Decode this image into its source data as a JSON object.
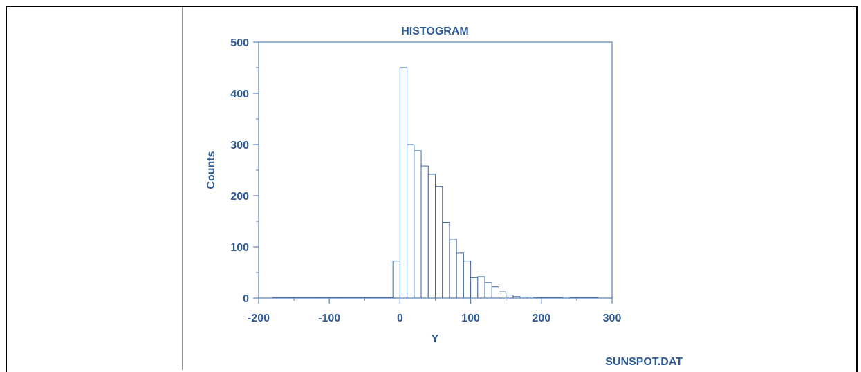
{
  "chart_data": {
    "type": "bar",
    "title": "HISTOGRAM",
    "xlabel": "Y",
    "ylabel": "Counts",
    "footer": "SUNSPOT.DAT",
    "xlim": [
      -200,
      300
    ],
    "ylim": [
      0,
      500
    ],
    "xticks": [
      -200,
      -100,
      0,
      100,
      200,
      300
    ],
    "yticks": [
      0,
      100,
      200,
      300,
      400,
      500
    ],
    "bin_width": 10,
    "bins": [
      {
        "x0": -180,
        "x1": -170,
        "count": 1
      },
      {
        "x0": -170,
        "x1": -160,
        "count": 1
      },
      {
        "x0": -160,
        "x1": -150,
        "count": 1
      },
      {
        "x0": -150,
        "x1": -140,
        "count": 1
      },
      {
        "x0": -140,
        "x1": -130,
        "count": 1
      },
      {
        "x0": -130,
        "x1": -120,
        "count": 1
      },
      {
        "x0": -120,
        "x1": -110,
        "count": 1
      },
      {
        "x0": -110,
        "x1": -100,
        "count": 1
      },
      {
        "x0": -100,
        "x1": -90,
        "count": 1
      },
      {
        "x0": -90,
        "x1": -80,
        "count": 1
      },
      {
        "x0": -80,
        "x1": -70,
        "count": 1
      },
      {
        "x0": -70,
        "x1": -60,
        "count": 1
      },
      {
        "x0": -60,
        "x1": -50,
        "count": 1
      },
      {
        "x0": -50,
        "x1": -40,
        "count": 1
      },
      {
        "x0": -40,
        "x1": -30,
        "count": 1
      },
      {
        "x0": -30,
        "x1": -20,
        "count": 1
      },
      {
        "x0": -20,
        "x1": -10,
        "count": 1
      },
      {
        "x0": -10,
        "x1": 0,
        "count": 72
      },
      {
        "x0": 0,
        "x1": 10,
        "count": 450
      },
      {
        "x0": 10,
        "x1": 20,
        "count": 300
      },
      {
        "x0": 20,
        "x1": 30,
        "count": 288
      },
      {
        "x0": 30,
        "x1": 40,
        "count": 258
      },
      {
        "x0": 40,
        "x1": 50,
        "count": 242
      },
      {
        "x0": 50,
        "x1": 60,
        "count": 218
      },
      {
        "x0": 60,
        "x1": 70,
        "count": 148
      },
      {
        "x0": 70,
        "x1": 80,
        "count": 115
      },
      {
        "x0": 80,
        "x1": 90,
        "count": 88
      },
      {
        "x0": 90,
        "x1": 100,
        "count": 72
      },
      {
        "x0": 100,
        "x1": 110,
        "count": 40
      },
      {
        "x0": 110,
        "x1": 120,
        "count": 42
      },
      {
        "x0": 120,
        "x1": 130,
        "count": 30
      },
      {
        "x0": 130,
        "x1": 140,
        "count": 22
      },
      {
        "x0": 140,
        "x1": 150,
        "count": 12
      },
      {
        "x0": 150,
        "x1": 160,
        "count": 6
      },
      {
        "x0": 160,
        "x1": 170,
        "count": 3
      },
      {
        "x0": 170,
        "x1": 180,
        "count": 2
      },
      {
        "x0": 180,
        "x1": 190,
        "count": 2
      },
      {
        "x0": 190,
        "x1": 200,
        "count": 1
      },
      {
        "x0": 200,
        "x1": 210,
        "count": 1
      },
      {
        "x0": 210,
        "x1": 220,
        "count": 1
      },
      {
        "x0": 220,
        "x1": 230,
        "count": 1
      },
      {
        "x0": 230,
        "x1": 240,
        "count": 2
      },
      {
        "x0": 240,
        "x1": 250,
        "count": 1
      },
      {
        "x0": 250,
        "x1": 260,
        "count": 1
      },
      {
        "x0": 260,
        "x1": 270,
        "count": 1
      },
      {
        "x0": 270,
        "x1": 280,
        "count": 1
      }
    ],
    "grid": false,
    "colors": {
      "frame": "#5a7fb0",
      "text": "#2f5b94",
      "bar_edge": "#3e6aa3",
      "bar_fill": "#ffffff"
    }
  }
}
